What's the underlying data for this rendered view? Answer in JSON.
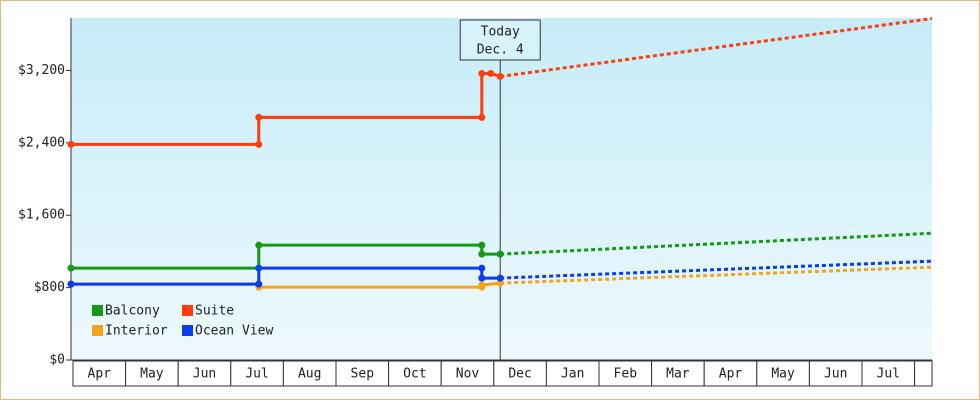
{
  "chart_data": {
    "type": "line",
    "categories": [
      "Apr",
      "May",
      "Jun",
      "Jul",
      "Aug",
      "Sep",
      "Oct",
      "Nov",
      "Dec",
      "Jan",
      "Feb",
      "Mar",
      "Apr",
      "May",
      "Jun",
      "Jul"
    ],
    "xlim": [
      0,
      16.37
    ],
    "ylim": [
      0,
      3780
    ],
    "yticks": [
      {
        "value": 0,
        "label": "$0"
      },
      {
        "value": 800,
        "label": "$800"
      },
      {
        "value": 1600,
        "label": "$1,600"
      },
      {
        "value": 2400,
        "label": "$2,400"
      },
      {
        "value": 3200,
        "label": "$3,200"
      }
    ],
    "today": {
      "x": 8.16,
      "label": [
        "Today",
        "Dec. 4"
      ]
    },
    "legend": "lower left",
    "series": [
      {
        "name": "Balcony",
        "color": "#149a14",
        "x": [
          0,
          3.57,
          3.57,
          7.81,
          7.81,
          8.16
        ],
        "values": [
          1015,
          1015,
          1269,
          1269,
          1170,
          1170
        ],
        "forecast_x": [
          8.16,
          16.37
        ],
        "forecast_values": [
          1170,
          1401
        ]
      },
      {
        "name": "Suite",
        "color": "#ff3c0a",
        "x": [
          0,
          3.57,
          3.57,
          7.81,
          7.81,
          7.98,
          8.16
        ],
        "values": [
          2383,
          2383,
          2681,
          2681,
          3167,
          3167,
          3134
        ],
        "forecast_x": [
          8.16,
          16.37
        ],
        "forecast_values": [
          3134,
          3774
        ]
      },
      {
        "name": "Interior",
        "color": "#f5a31a",
        "x": [
          0,
          3.57,
          3.57,
          7.81,
          7.81,
          8.16
        ],
        "values": [
          839,
          839,
          805,
          805,
          828,
          850
        ],
        "forecast_x": [
          8.16,
          16.37
        ],
        "forecast_values": [
          850,
          1026
        ]
      },
      {
        "name": "Ocean View",
        "color": "#0a3cf0",
        "x": [
          0,
          3.57,
          3.57,
          7.81,
          7.81,
          8.16
        ],
        "values": [
          839,
          839,
          1015,
          1015,
          905,
          905
        ],
        "forecast_x": [
          8.16,
          16.37
        ],
        "forecast_values": [
          905,
          1092
        ]
      }
    ]
  }
}
